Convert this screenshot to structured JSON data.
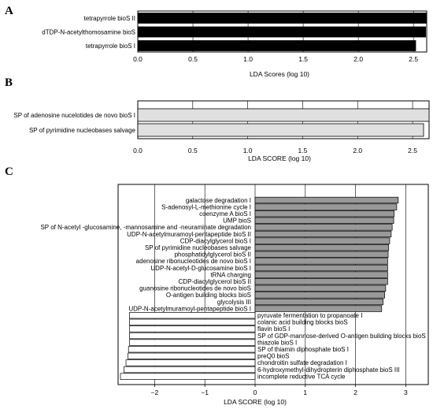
{
  "chart_data": [
    {
      "panel": "A",
      "type": "bar",
      "orientation": "horizontal",
      "categories": [
        "tetrapyrrole bioS II",
        "dTDP-N-acetylthomosamine bioS",
        "tetrapyrrole bioS I"
      ],
      "values": [
        2.62,
        2.61,
        2.52
      ],
      "xlabel": "LDA Scores (log 10)",
      "xlim": [
        0,
        2.62
      ],
      "xticks": [
        "0.0",
        "0.5",
        "1.0",
        "1.5",
        "2.0",
        "2.5"
      ],
      "bar_color": "#000000"
    },
    {
      "panel": "B",
      "type": "bar",
      "orientation": "horizontal",
      "categories": [
        "SP of adenosine nucelotides de novo bioS I",
        "SP of pyrimidine nucleobases salvage"
      ],
      "values": [
        2.65,
        2.6
      ],
      "xlabel": "LDA SCORE (log 10)",
      "xlim": [
        0,
        2.65
      ],
      "xticks": [
        "0.0",
        "0.5",
        "1.0",
        "1.5",
        "2.0",
        "2.5"
      ],
      "bar_color": "#e0e0e0"
    },
    {
      "panel": "C",
      "type": "bar",
      "orientation": "horizontal",
      "categories": [
        "galactose degradation I",
        "S-adenosyl-L-methionine cycle I",
        "coenzyme A bioS I",
        "UMP bioS",
        "SP of N-acetyl -glucosamine, -mannosamine and -neuraminate degradation",
        "UDP-N-acetylmuramoyl-pentapeptide bioS II",
        "CDP-diacylglycerol bioS I",
        "SP of pyrimidine nucleobases salvage",
        "phosphatidylglycerol bioS II",
        "adenosine ribonucleotides de novo bioS I",
        "UDP-N-acetyl-D-glucosamine bioS I",
        "tRNA charging",
        "CDP-diacylglycerol bioS II",
        "guanosine ribonucleotides de novo bioS",
        "O-antigen building blocks bioS",
        "glycolysis III",
        "UDP-N-acetylmuramoyl-pentapeptide bioS I",
        "pyruvate fermentation to propanoate I",
        "colanic acid building blocks bioS",
        "flavin bioS I",
        "SP of GDP-mannose-derived O-antigen building blocks bioS",
        "thiazole bioS I",
        "SP of thiamin diphosphate bioS I",
        "preQ0 bioS",
        "chondroitin sulfate degradation I",
        "6-hydroxymethyl-dihydropterin diphosphate bioS III",
        "incomplete reductive TCA cycle"
      ],
      "values": [
        2.85,
        2.82,
        2.77,
        2.76,
        2.73,
        2.71,
        2.68,
        2.66,
        2.65,
        2.64,
        2.64,
        2.64,
        2.64,
        2.6,
        2.58,
        2.55,
        2.52,
        -2.5,
        -2.5,
        -2.5,
        -2.5,
        -2.5,
        -2.52,
        -2.53,
        -2.57,
        -2.61,
        -2.68
      ],
      "xlabel": "LDA SCORE (log 10)",
      "xlim": [
        -2.7,
        3.2
      ],
      "xticks": [
        "−2",
        "−1",
        "0",
        "1",
        "2",
        "3"
      ],
      "positive_color": "#999999",
      "negative_color": "#ffffff"
    }
  ],
  "panel_labels": [
    "A",
    "B",
    "C"
  ]
}
